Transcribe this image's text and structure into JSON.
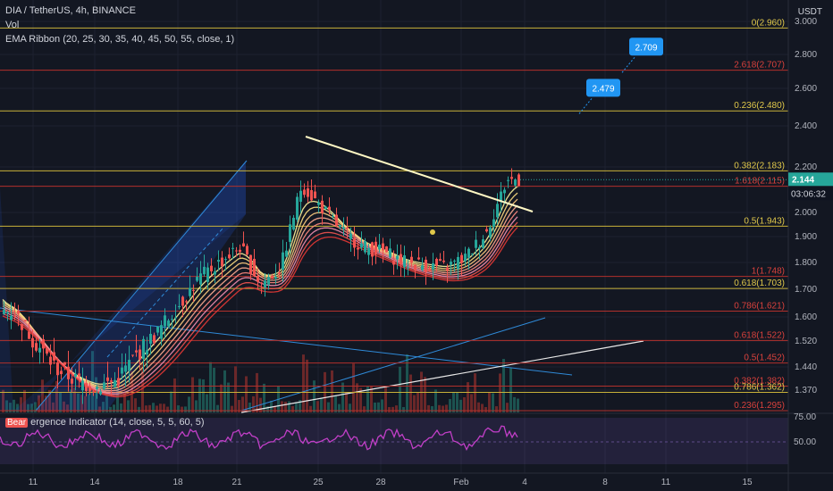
{
  "header": {
    "title": "DIA / TetherUS, 4h, BINANCE",
    "vol_label": "Vol",
    "ribbon_label": "EMA Ribbon (20, 25, 30, 35, 40, 45, 50, 55, close, 1)",
    "currency": "USDT"
  },
  "rsi_panel": {
    "badge": "Bear",
    "label": "ergence Indicator (14, close, 5, 5, 60, 5)",
    "ticks": [
      "75.00",
      "50.00"
    ]
  },
  "price": {
    "current": "2.144",
    "countdown": "03:06:32"
  },
  "colors": {
    "background": "#131722",
    "bull": "#26a69a",
    "bear": "#ef5350",
    "fib_yellow": "#c9b23a",
    "fib_red": "#b2302c",
    "trend_white": "#e8e8e8",
    "channel_blue": "#2f8ad8",
    "rsi_purple": "#c23fc8",
    "callout_blue": "#2196f3"
  },
  "chart_data": {
    "type": "candlestick",
    "y_axis_ticks": [
      "3.000",
      "2.800",
      "2.600",
      "2.400",
      "2.200",
      "2.000",
      "1.900",
      "1.800",
      "1.700",
      "1.600",
      "1.520",
      "1.440",
      "1.370"
    ],
    "x_axis_ticks": [
      "11",
      "14",
      "18",
      "21",
      "25",
      "28",
      "Feb",
      "4",
      "8",
      "11",
      "15"
    ],
    "fib_levels": [
      {
        "label": "0(2.960)",
        "value": 2.96,
        "color": "yellow"
      },
      {
        "label": "2.618(2.707)",
        "value": 2.707,
        "color": "red"
      },
      {
        "label": "0.236(2.480)",
        "value": 2.48,
        "color": "yellow"
      },
      {
        "label": "0.382(2.183)",
        "value": 2.183,
        "color": "yellow"
      },
      {
        "label": "1.618(2.115)",
        "value": 2.115,
        "color": "red"
      },
      {
        "label": "0.5(1.943)",
        "value": 1.943,
        "color": "yellow"
      },
      {
        "label": "1(1.748)",
        "value": 1.748,
        "color": "red"
      },
      {
        "label": "0.618(1.703)",
        "value": 1.703,
        "color": "yellow"
      },
      {
        "label": "0.786(1.621)",
        "value": 1.621,
        "color": "red"
      },
      {
        "label": "0.618(1.522)",
        "value": 1.522,
        "color": "red"
      },
      {
        "label": "0.5(1.452)",
        "value": 1.452,
        "color": "red"
      },
      {
        "label": "0.382(1.382)",
        "value": 1.382,
        "color": "red"
      },
      {
        "label": "0.786(1.362)",
        "value": 1.362,
        "color": "yellow"
      },
      {
        "label": "0.236(1.295)",
        "value": 1.295,
        "color": "red"
      }
    ],
    "callouts": [
      {
        "label": "2.709",
        "value": 2.709
      },
      {
        "label": "2.479",
        "value": 2.479
      }
    ],
    "close_path": [
      {
        "date": "Jan 10",
        "close": 1.62
      },
      {
        "date": "Jan 11",
        "close": 1.52
      },
      {
        "date": "Jan 12",
        "close": 1.44
      },
      {
        "date": "Jan 13",
        "close": 1.4
      },
      {
        "date": "Jan 14",
        "close": 1.38
      },
      {
        "date": "Jan 15",
        "close": 1.4
      },
      {
        "date": "Jan 16",
        "close": 1.48
      },
      {
        "date": "Jan 17",
        "close": 1.55
      },
      {
        "date": "Jan 18",
        "close": 1.64
      },
      {
        "date": "Jan 19",
        "close": 1.74
      },
      {
        "date": "Jan 20",
        "close": 1.8
      },
      {
        "date": "Jan 21",
        "close": 1.86
      },
      {
        "date": "Jan 22",
        "close": 1.72
      },
      {
        "date": "Jan 23",
        "close": 1.78
      },
      {
        "date": "Jan 24",
        "close": 2.12
      },
      {
        "date": "Jan 25",
        "close": 2.02
      },
      {
        "date": "Jan 26",
        "close": 1.92
      },
      {
        "date": "Jan 27",
        "close": 1.86
      },
      {
        "date": "Jan 28",
        "close": 1.84
      },
      {
        "date": "Jan 29",
        "close": 1.8
      },
      {
        "date": "Jan 30",
        "close": 1.79
      },
      {
        "date": "Jan 31",
        "close": 1.78
      },
      {
        "date": "Feb 1",
        "close": 1.82
      },
      {
        "date": "Feb 2",
        "close": 1.92
      },
      {
        "date": "Feb 3",
        "close": 2.144
      }
    ]
  }
}
